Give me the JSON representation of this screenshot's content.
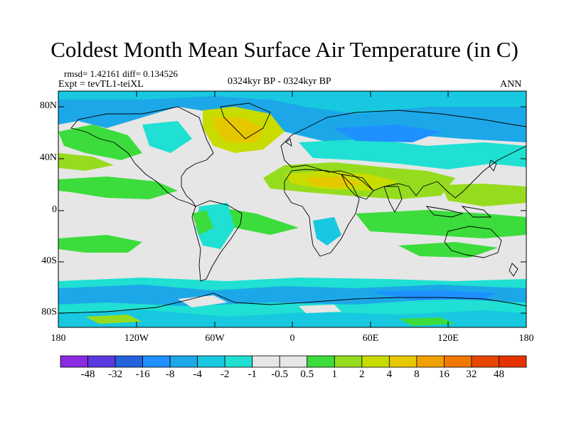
{
  "title": "Coldest Month Mean Surface Air Temperature (in C)",
  "stats": "rmsd= 1.42161 diff= 0.134526",
  "expt": "Expt = tevTL1-teiXL",
  "period": "0324kyr BP - 0324kyr BP",
  "season": "ANN",
  "colors": {
    "background": "#e6e6e6",
    "coast": "#000000",
    "palette": [
      "#8a2be2",
      "#5a3ae0",
      "#2563dc",
      "#1e90ff",
      "#1ca8e8",
      "#18c8e0",
      "#1fe0d2",
      "#e6e6e6",
      "#e6e6e6",
      "#3cdc3c",
      "#96dc1e",
      "#c8dc00",
      "#e6c800",
      "#f0a000",
      "#f07800",
      "#e64600",
      "#e63200"
    ]
  },
  "map": {
    "lat_labels": [
      "80N",
      "40N",
      "0",
      "40S",
      "80S"
    ],
    "lon_labels": [
      "180",
      "120W",
      "60W",
      "0",
      "60E",
      "120E",
      "180"
    ]
  },
  "colorbar": {
    "labels": [
      "-48",
      "-32",
      "-16",
      "-8",
      "-4",
      "-2",
      "-1",
      "-0.5",
      "0.5",
      "1",
      "2",
      "4",
      "8",
      "16",
      "32",
      "48"
    ]
  }
}
